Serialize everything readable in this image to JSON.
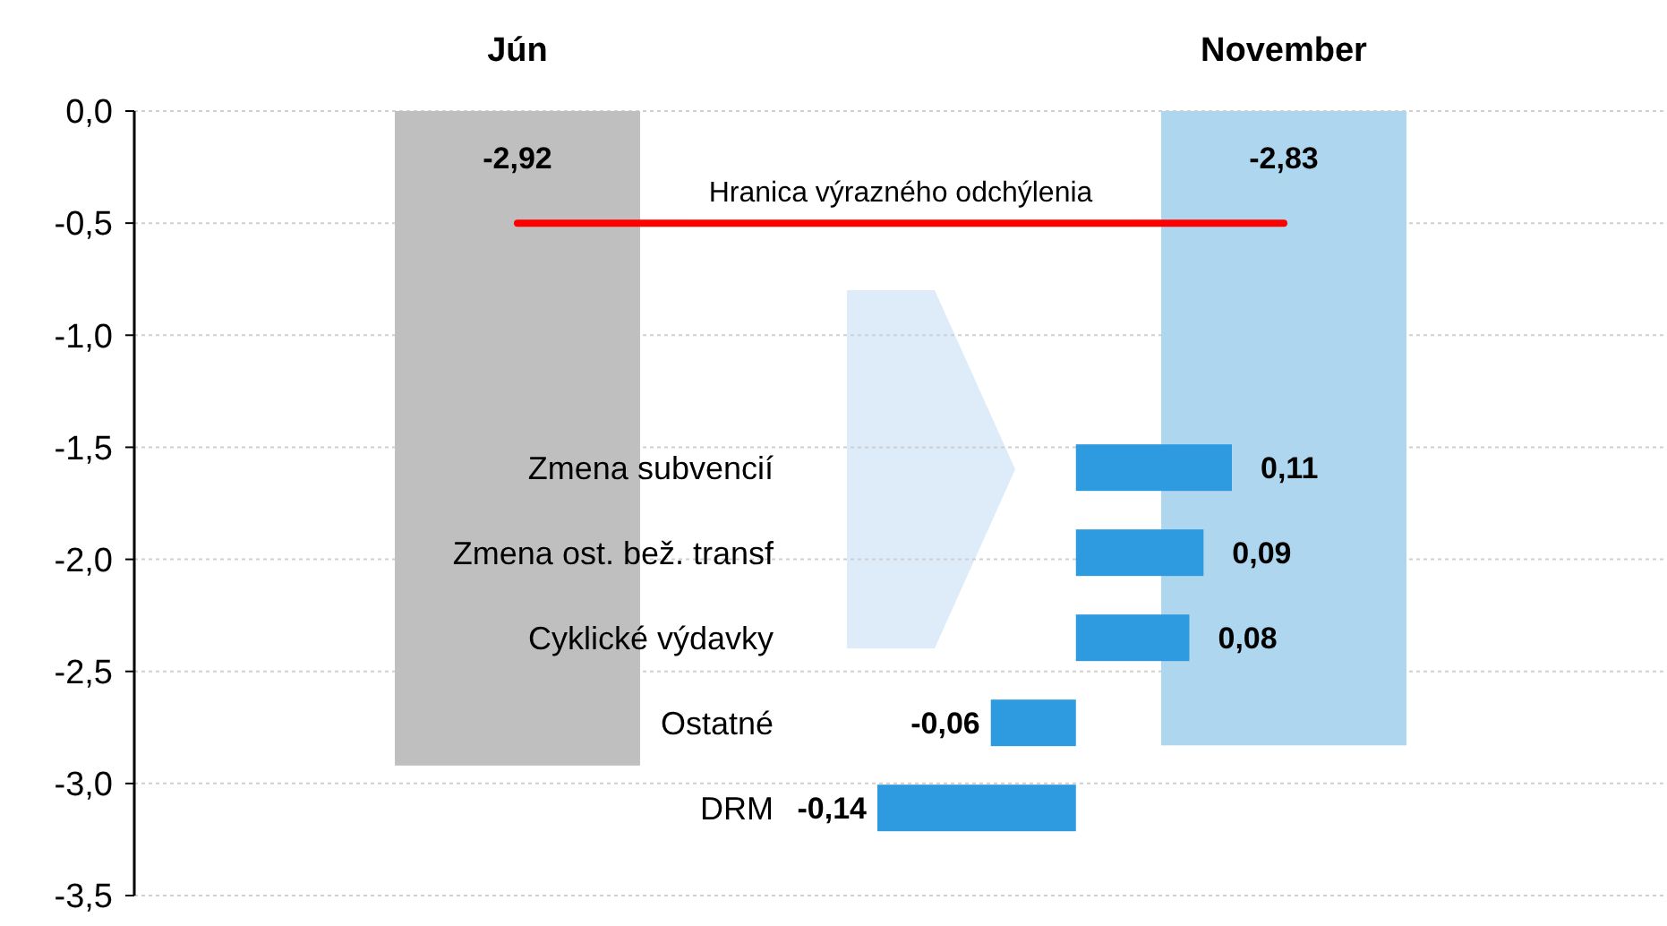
{
  "chart_data": [
    {
      "type": "bar",
      "categories": [
        "Jún",
        "November"
      ],
      "values": [
        -2.92,
        -2.83
      ],
      "colors": [
        "#bfbfbf",
        "#aed6ef"
      ],
      "value_labels": [
        "-2,92",
        "-2,83"
      ],
      "ylim": [
        -3.5,
        0
      ],
      "yticks": [
        {
          "value": 0,
          "label": "0,0"
        },
        {
          "value": -0.5,
          "label": "-0,5"
        },
        {
          "value": -1,
          "label": "-1,0"
        },
        {
          "value": -1.5,
          "label": "-1,5"
        },
        {
          "value": -2,
          "label": "-2,0"
        },
        {
          "value": -2.5,
          "label": "-2,5"
        },
        {
          "value": -3,
          "label": "-3,0"
        },
        {
          "value": -3.5,
          "label": "-3,5"
        }
      ],
      "grid": "y",
      "ref_lines": [
        {
          "axis": "y",
          "value": -0.5,
          "label": "Hranica výrazného odchýlenia",
          "color": "#ff0000"
        }
      ]
    },
    {
      "type": "bar",
      "orientation": "horizontal",
      "categories": [
        "Zmena subvencií",
        "Zmena ost. bež. transf",
        "Cyklické výdavky",
        "Ostatné",
        "DRM"
      ],
      "values": [
        0.11,
        0.09,
        0.08,
        -0.06,
        -0.14
      ],
      "color": "#2e9be0",
      "value_labels": [
        "0,11",
        "0,09",
        "0,08",
        "-0,06",
        "-0,14"
      ],
      "tick_labels": "y"
    }
  ]
}
